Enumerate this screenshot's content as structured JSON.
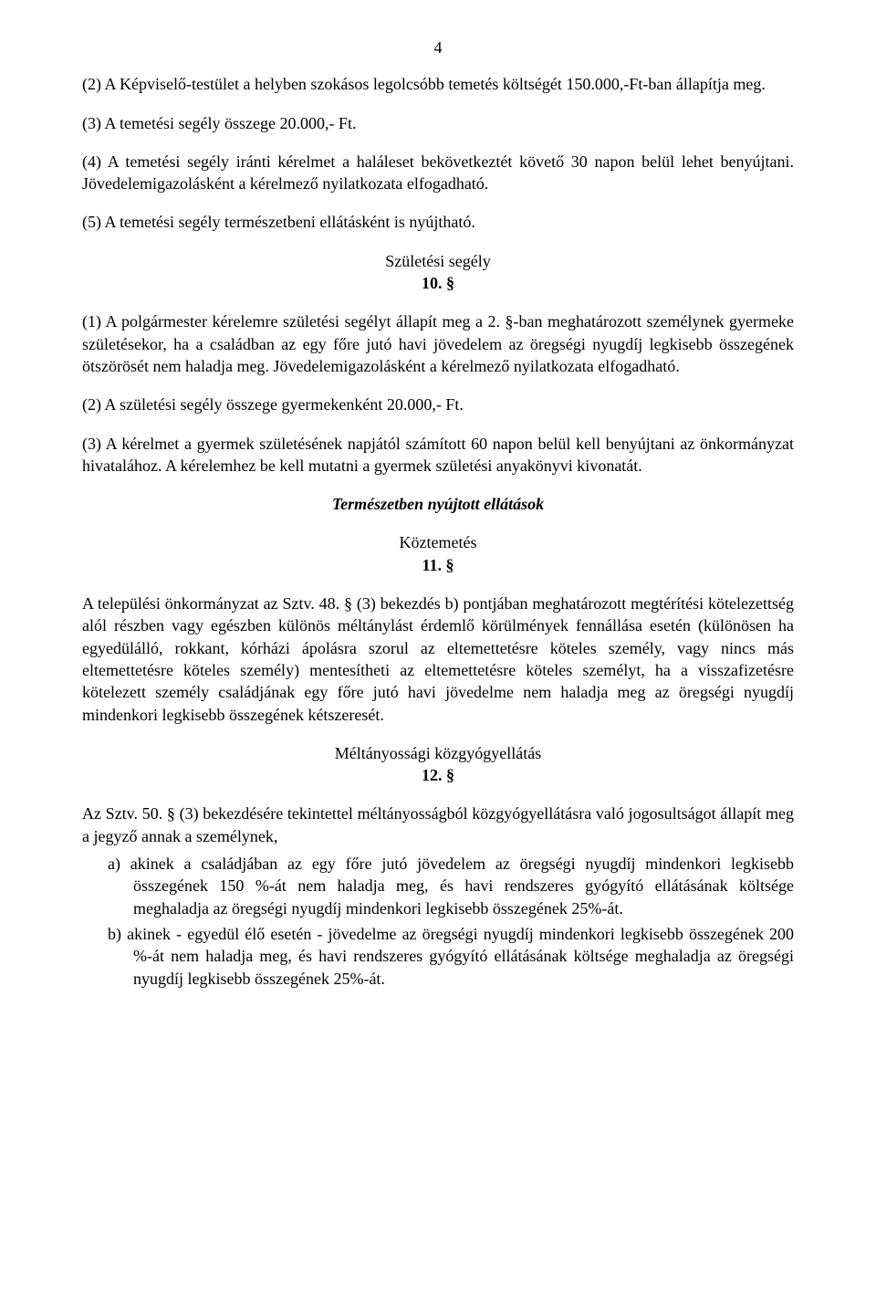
{
  "pageNumber": "4",
  "p1": "(2) A Képviselő-testület a helyben szokásos legolcsóbb temetés költségét 150.000,-Ft-ban állapítja meg.",
  "p2": "(3) A temetési segély összege 20.000,- Ft.",
  "p3": "(4) A temetési segély iránti kérelmet a haláleset bekövetkeztét követő 30 napon belül lehet benyújtani. Jövedelemigazolásként a kérelmező nyilatkozata elfogadható.",
  "p4": "(5) A temetési segély természetbeni ellátásként is nyújtható.",
  "sec10_title": "Születési segély",
  "sec10_num": "10. §",
  "p5": "(1) A polgármester kérelemre születési segélyt állapít meg a 2. §-ban meghatározott személynek gyermeke születésekor, ha a családban az egy főre jutó havi jövedelem az öregségi nyugdíj legkisebb összegének ötszörösét nem haladja meg. Jövedelemigazolásként a kérelmező nyilatkozata elfogadható.",
  "p6": "(2) A születési segély összege gyermekenként 20.000,- Ft.",
  "p7": "(3) A kérelmet a gyermek születésének napjától számított 60 napon belül kell benyújtani az önkormányzat hivatalához. A kérelemhez be kell mutatni a gyermek születési anyakönyvi kivonatát.",
  "heading_natural": "Természetben nyújtott ellátások",
  "sec11_title": "Köztemetés",
  "sec11_num": "11. §",
  "p8": "A települési önkormányzat az Sztv. 48. § (3) bekezdés b) pontjában meghatározott megtérítési kötelezettség alól részben vagy egészben különös méltánylást érdemlő körülmények fennállása esetén (különösen ha egyedülálló, rokkant, kórházi ápolásra szorul az eltemettetésre köteles személy, vagy nincs más eltemettetésre köteles személy) mentesítheti az eltemettetésre köteles személyt, ha a visszafizetésre kötelezett személy családjának egy főre jutó havi jövedelme nem haladja meg az öregségi nyugdíj mindenkori legkisebb összegének kétszeresét.",
  "sec12_title": "Méltányossági közgyógyellátás",
  "sec12_num": "12. §",
  "p9_intro": "Az Sztv. 50. § (3) bekezdésére tekintettel méltányosságból közgyógyellátásra való jogosultságot állapít meg a jegyző annak a személynek,",
  "p9_a": "a) akinek a családjában az egy főre jutó jövedelem az öregségi nyugdíj mindenkori legkisebb összegének 150 %-át nem haladja meg, és havi rendszeres gyógyító ellátásának költsége meghaladja az öregségi nyugdíj mindenkori legkisebb összegének 25%-át.",
  "p9_b": "b) akinek - egyedül élő esetén - jövedelme az öregségi nyugdíj mindenkori legkisebb összegének 200 %-át nem haladja meg, és havi rendszeres gyógyító ellátásának költsége meghaladja az öregségi nyugdíj legkisebb összegének 25%-át."
}
